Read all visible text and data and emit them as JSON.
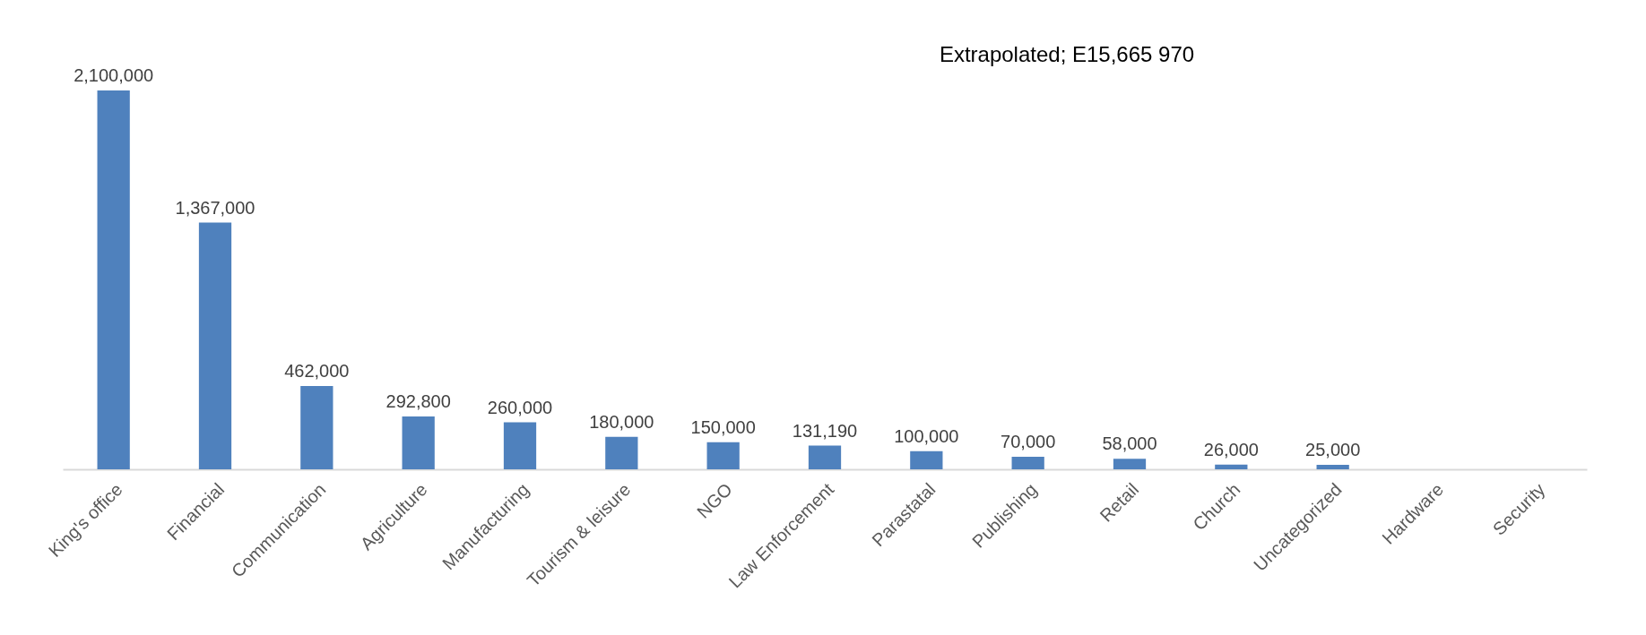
{
  "chart_data": {
    "type": "bar",
    "annotations": [
      "Extrapolated;  E15,665 970"
    ],
    "categories": [
      "King's office",
      "Financial",
      "Communication",
      "Agriculture",
      "Manufacturing",
      "Tourism & leisure",
      "NGO",
      "Law Enforcement",
      "Parastatal",
      "Publishing",
      "Retail",
      "Church",
      "Uncategorized",
      "Hardware",
      "Security"
    ],
    "values": [
      2100000,
      1367000,
      462000,
      292800,
      260000,
      180000,
      150000,
      131190,
      100000,
      70000,
      58000,
      26000,
      25000,
      null,
      null
    ],
    "value_labels": [
      "2,100,000",
      "1,367,000",
      "462,000",
      "292,800",
      "260,000",
      "180,000",
      "150,000",
      "131,190",
      "100,000",
      "70,000",
      "58,000",
      "26,000",
      "25,000",
      null,
      null
    ],
    "color": "#4f81bd",
    "grid": false,
    "tick_labels": "x"
  }
}
